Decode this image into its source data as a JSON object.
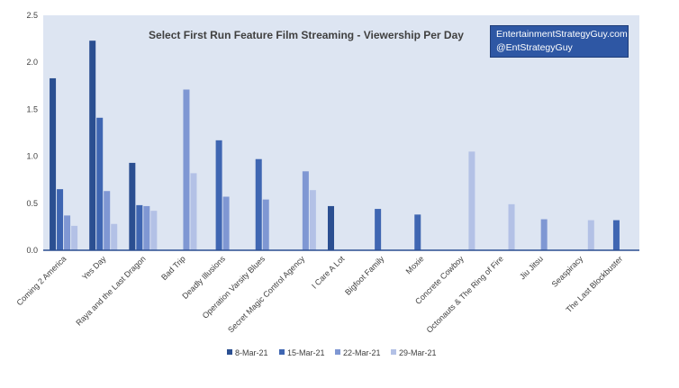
{
  "chart_data": {
    "type": "bar",
    "title": "Select First Run Feature Film Streaming - Viewership Per Day",
    "xlabel": "",
    "ylabel": "",
    "ylim": [
      0,
      2.5
    ],
    "yticks": [
      "0.0",
      "0.5",
      "1.0",
      "1.5",
      "2.0",
      "2.5"
    ],
    "grid": false,
    "legend_position": "bottom",
    "categories": [
      "Coming 2 America",
      "Yes Day",
      "Raya and the Last Dragon",
      "Bad Trip",
      "Deadly Illusions",
      "Operation Varsity Blues",
      "Secret Magic Control Agency",
      "I Care A Lot",
      "Bigfoot Family",
      "Moxie",
      "Concrete Cowboy",
      "Octonauts & The Ring of Fire",
      "Jiu Jitsu",
      "Seaspiracy",
      "The Last Blockbuster"
    ],
    "series": [
      {
        "name": "8-Mar-21",
        "color": "#2b4f91",
        "values": [
          1.83,
          2.23,
          0.93,
          null,
          null,
          null,
          null,
          0.47,
          null,
          null,
          null,
          null,
          null,
          null,
          null
        ]
      },
      {
        "name": "15-Mar-21",
        "color": "#3f66b2",
        "values": [
          0.65,
          1.41,
          0.48,
          null,
          1.17,
          0.97,
          null,
          null,
          0.44,
          0.38,
          null,
          null,
          null,
          null,
          0.32
        ]
      },
      {
        "name": "22-Mar-21",
        "color": "#7f97d3",
        "values": [
          0.37,
          0.63,
          0.47,
          1.71,
          0.57,
          0.54,
          0.84,
          null,
          null,
          null,
          null,
          null,
          0.33,
          null,
          null
        ]
      },
      {
        "name": "29-Mar-21",
        "color": "#b3c1e6",
        "values": [
          0.26,
          0.28,
          0.42,
          0.82,
          null,
          null,
          0.64,
          null,
          null,
          null,
          1.05,
          0.49,
          null,
          0.32,
          null
        ]
      }
    ]
  },
  "branding": {
    "line1": "EntertainmentStrategyGuy.com",
    "line2": "@EntStrategyGuy"
  },
  "colors": {
    "plot_background": "#dde5f2",
    "axis": "#2b4f91",
    "text": "#404040"
  }
}
